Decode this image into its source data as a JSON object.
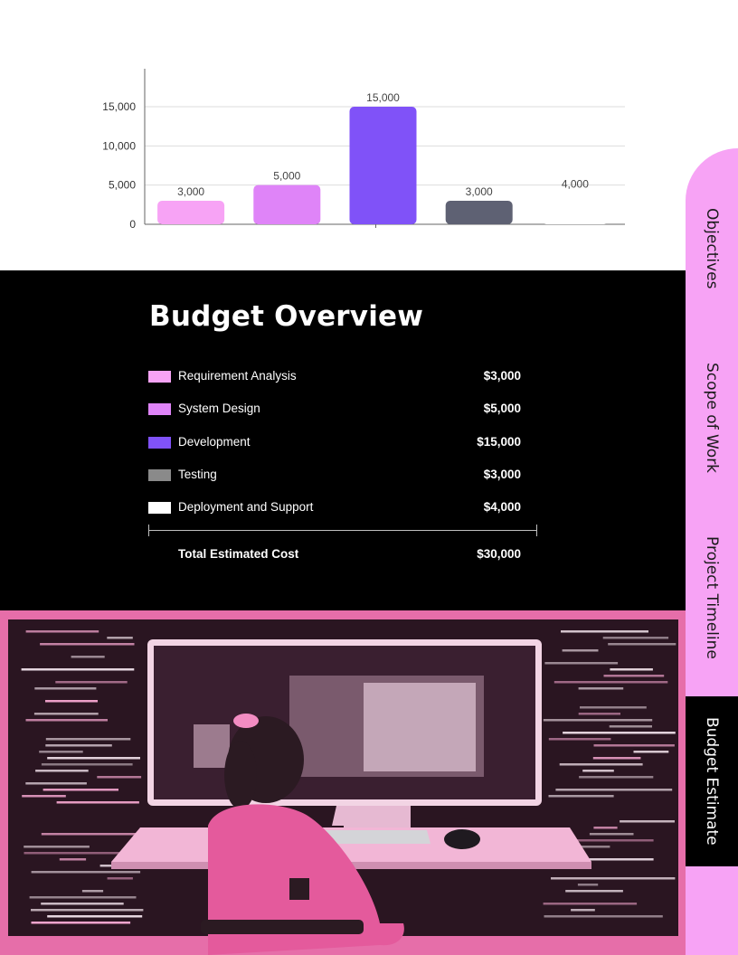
{
  "chart_data": {
    "type": "bar",
    "categories": [
      "Requirement Analysis",
      "System Design",
      "Development",
      "Testing",
      "Deployment and Support"
    ],
    "values": [
      3000,
      5000,
      15000,
      3000,
      4000
    ],
    "value_labels": [
      "3,000",
      "5,000",
      "15,000",
      "3,000",
      "4,000"
    ],
    "bar_colors": [
      "#f7a3f5",
      "#df84f8",
      "#8052f8",
      "#5e6173",
      "#ffffff"
    ],
    "y_ticks": [
      0,
      5000,
      10000,
      15000
    ],
    "y_tick_labels": [
      "0",
      "5,000",
      "10,000",
      "15,000"
    ],
    "ylim": [
      0,
      15000
    ],
    "grid": true,
    "title": "",
    "xlabel": "",
    "ylabel": ""
  },
  "budget": {
    "title": "Budget Overview",
    "items": [
      {
        "label": "Requirement Analysis",
        "value": "$3,000",
        "color": "#f7a3f5"
      },
      {
        "label": "System Design",
        "value": "$5,000",
        "color": "#df84f8"
      },
      {
        "label": "Development",
        "value": "$15,000",
        "color": "#8052f8"
      },
      {
        "label": "Testing",
        "value": "$3,000",
        "color": "#8a8a8a"
      },
      {
        "label": "Deployment and Support",
        "value": "$4,000",
        "color": "#ffffff"
      }
    ],
    "total_label": "Total Estimated Cost",
    "total_value": "$30,000"
  },
  "side_nav": {
    "tabs": [
      {
        "label": "Objectives",
        "active": false
      },
      {
        "label": "Scope of Work",
        "active": false
      },
      {
        "label": "Project Timeline",
        "active": false
      },
      {
        "label": "Budget Estimate",
        "active": true
      }
    ]
  },
  "colors": {
    "accent_pink": "#f7a3f5",
    "section_black": "#000000",
    "photo_pink": "#e36aa8"
  }
}
